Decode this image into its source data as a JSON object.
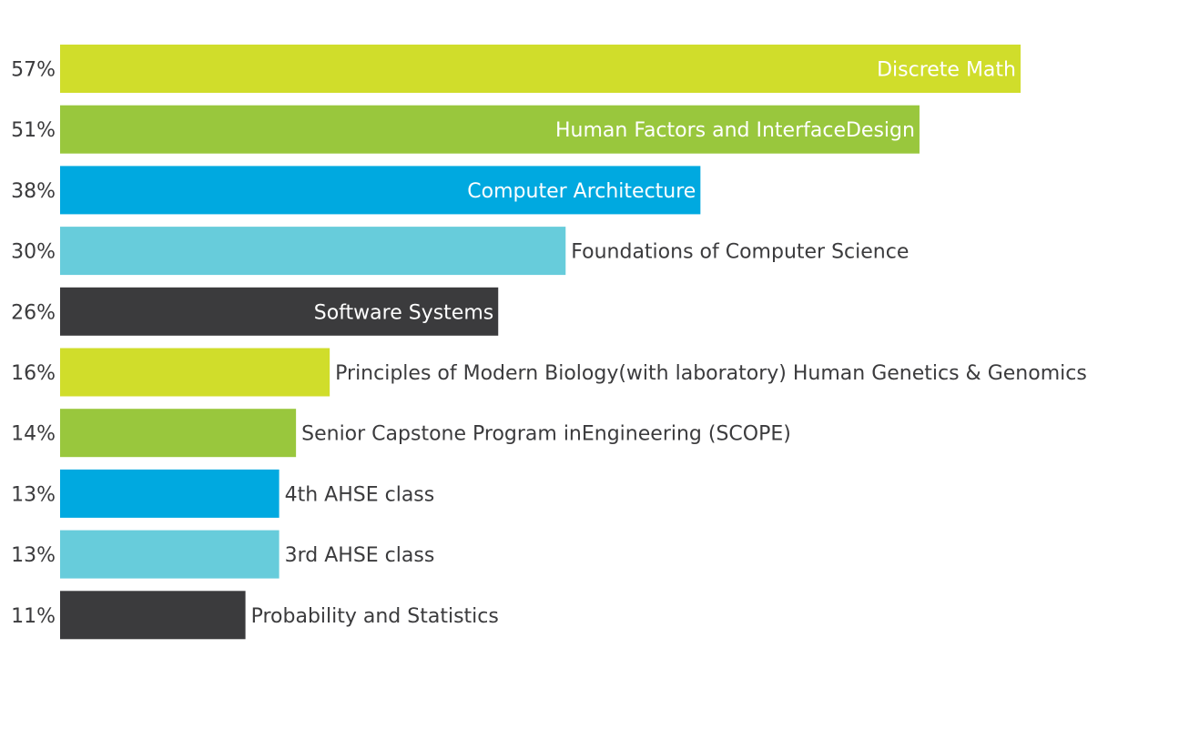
{
  "chart_data": {
    "type": "bar",
    "orientation": "horizontal",
    "categories": [
      "Discrete Math",
      "Human Factors and InterfaceDesign",
      "Computer Architecture",
      "Foundations of Computer Science",
      "Software Systems",
      "Principles of Modern Biology(with laboratory) Human Genetics & Genomics",
      "Senior Capstone Program inEngineering (SCOPE)",
      "4th AHSE class",
      "3rd AHSE class",
      "Probability and Statistics"
    ],
    "values": [
      57,
      51,
      38,
      30,
      26,
      16,
      14,
      13,
      13,
      11
    ],
    "value_labels": [
      "57%",
      "51%",
      "38%",
      "30%",
      "26%",
      "16%",
      "14%",
      "13%",
      "13%",
      "11%"
    ],
    "colors": [
      "#d0dd2b",
      "#99c73d",
      "#00a9e0",
      "#67ccdb",
      "#3b3b3d",
      "#d0dd2b",
      "#99c73d",
      "#00a9e0",
      "#67ccdb",
      "#3b3b3d"
    ],
    "label_inside": [
      true,
      true,
      true,
      false,
      true,
      false,
      false,
      false,
      false,
      false
    ],
    "xlim": [
      0,
      66.4
    ],
    "grid": false,
    "legend": "none"
  }
}
